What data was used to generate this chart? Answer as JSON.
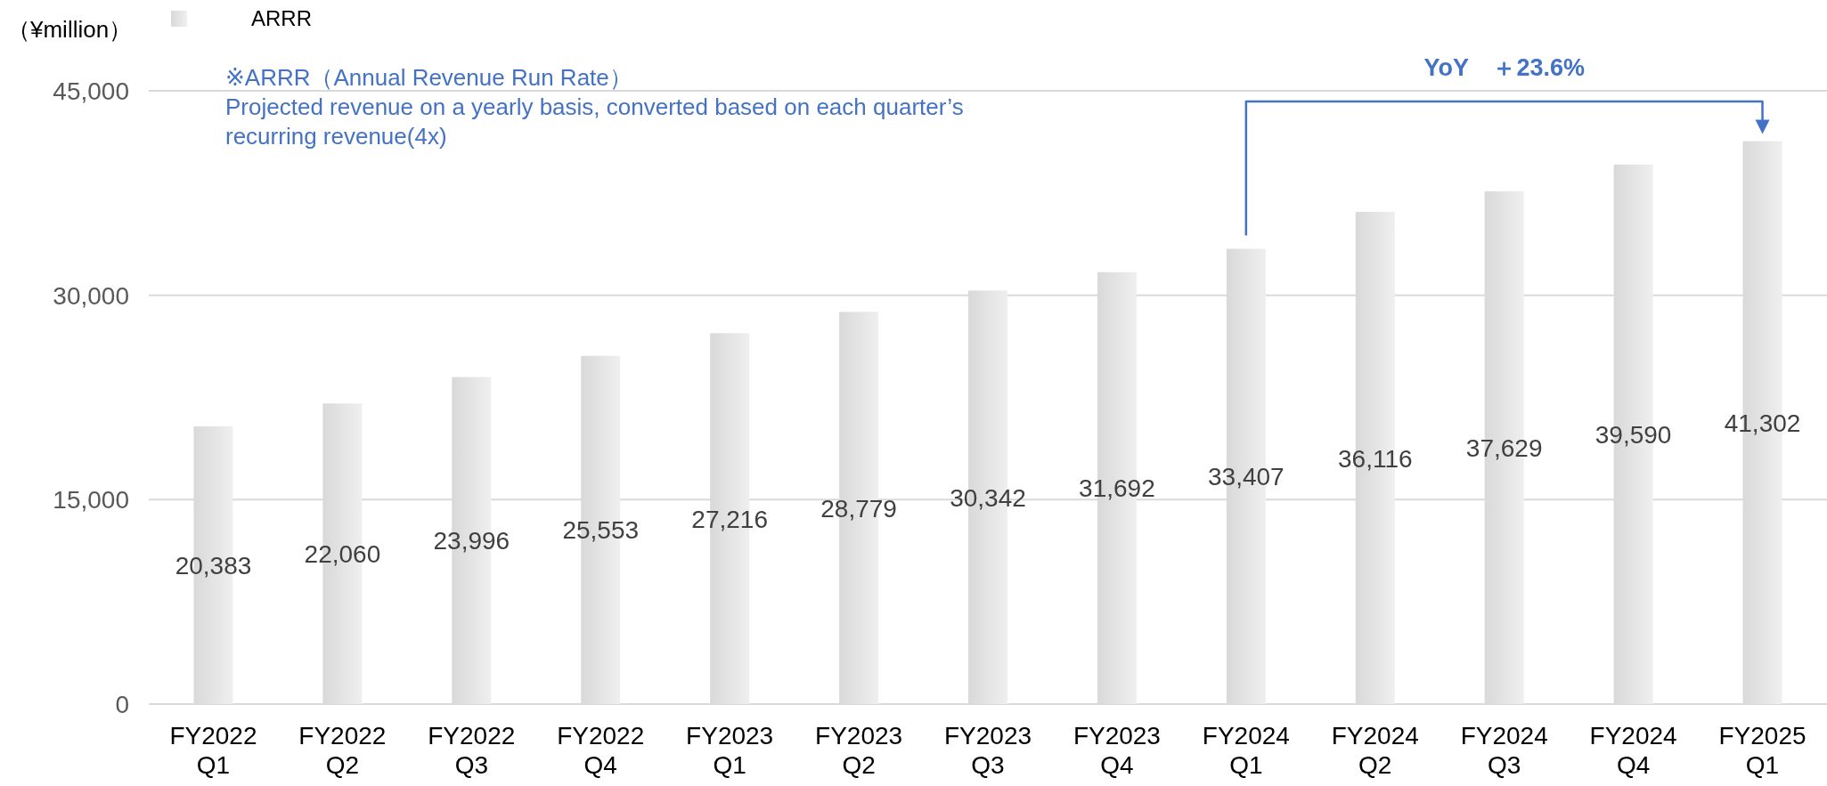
{
  "chart_data": {
    "type": "bar",
    "ylabel": "（¥million）",
    "categories": [
      "FY2022 Q1",
      "FY2022 Q2",
      "FY2022 Q3",
      "FY2022 Q4",
      "FY2023 Q1",
      "FY2023 Q2",
      "FY2023 Q3",
      "FY2023 Q4",
      "FY2024 Q1",
      "FY2024 Q2",
      "FY2024 Q3",
      "FY2024 Q4",
      "FY2025 Q1"
    ],
    "series": [
      {
        "name": "ARRR",
        "color": "#d9d9d9",
        "values": [
          20383,
          22060,
          23996,
          25553,
          27216,
          28779,
          30342,
          31692,
          33407,
          36116,
          37629,
          39590,
          41302
        ],
        "value_labels": [
          "20,383",
          "22,060",
          "23,996",
          "25,553",
          "27,216",
          "28,779",
          "30,342",
          "31,692",
          "33,407",
          "36,116",
          "37,629",
          "39,590",
          "41,302"
        ]
      }
    ],
    "ylim": [
      0,
      45000
    ],
    "yticks": [
      {
        "value": 0,
        "label": "0"
      },
      {
        "value": 15000,
        "label": "15,000"
      },
      {
        "value": 30000,
        "label": "30,000"
      },
      {
        "value": 45000,
        "label": "45,000"
      }
    ],
    "grid": "y",
    "legend": "top left",
    "annotations": [
      "※ARRR（Annual Revenue Run Rate）",
      "Projected revenue on a yearly basis, converted based on each quarter’s recurring revenue(4x)",
      "YoY　＋23.6%"
    ]
  }
}
